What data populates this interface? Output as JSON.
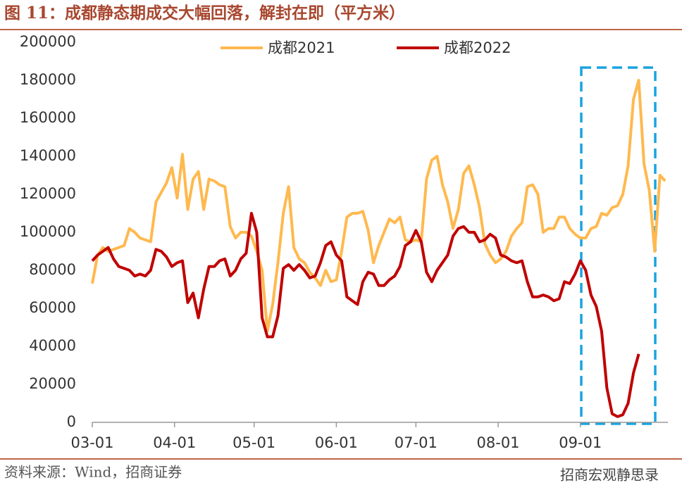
{
  "chart_data": {
    "type": "line",
    "title": "图 11：成都静态期成交大幅回落，解封在即（平方米）",
    "source": "资料来源：Wind，招商证券",
    "watermark": "招商宏观静思录",
    "x": [
      "03-01",
      "03-03",
      "03-05",
      "03-07",
      "03-09",
      "03-11",
      "03-13",
      "03-15",
      "03-17",
      "03-19",
      "03-21",
      "03-23",
      "03-25",
      "03-27",
      "03-29",
      "03-31",
      "04-02",
      "04-04",
      "04-06",
      "04-08",
      "04-10",
      "04-12",
      "04-14",
      "04-16",
      "04-18",
      "04-20",
      "04-22",
      "04-24",
      "04-26",
      "04-28",
      "04-30",
      "05-02",
      "05-04",
      "05-06",
      "05-08",
      "05-10",
      "05-12",
      "05-14",
      "05-16",
      "05-18",
      "05-20",
      "05-22",
      "05-24",
      "05-26",
      "05-28",
      "05-30",
      "06-01",
      "06-03",
      "06-05",
      "06-07",
      "06-09",
      "06-11",
      "06-13",
      "06-15",
      "06-17",
      "06-19",
      "06-21",
      "06-23",
      "06-25",
      "06-27",
      "06-29",
      "07-01",
      "07-03",
      "07-05",
      "07-07",
      "07-09",
      "07-11",
      "07-13",
      "07-15",
      "07-17",
      "07-19",
      "07-21",
      "07-23",
      "07-25",
      "07-27",
      "07-29",
      "07-31",
      "08-02",
      "08-04",
      "08-06",
      "08-08",
      "08-10",
      "08-12",
      "08-14",
      "08-16",
      "08-18",
      "08-20",
      "08-22",
      "08-24",
      "08-26",
      "08-28",
      "08-30",
      "09-01",
      "09-03",
      "09-05",
      "09-07",
      "09-09",
      "09-11",
      "09-13",
      "09-15",
      "09-17",
      "09-19",
      "09-21",
      "09-23",
      "09-25",
      "09-27",
      "09-29",
      "10-01",
      "10-03"
    ],
    "series": [
      {
        "name": "成都2021",
        "color": "#FFB94F",
        "values": [
          73000,
          88000,
          92000,
          90000,
          91000,
          92000,
          93000,
          102000,
          100000,
          97000,
          96000,
          95000,
          116000,
          121000,
          126000,
          134000,
          118000,
          141000,
          112000,
          128000,
          132000,
          112000,
          128000,
          127000,
          125000,
          124000,
          103000,
          97000,
          100000,
          100000,
          98000,
          90000,
          80000,
          48000,
          62000,
          84000,
          110000,
          124000,
          92000,
          86000,
          84000,
          79000,
          76000,
          72000,
          80000,
          74000,
          75000,
          90000,
          108000,
          110000,
          110000,
          111000,
          101000,
          84000,
          93000,
          100000,
          107000,
          105000,
          108000,
          96000,
          95000,
          96000,
          95000,
          128000,
          138000,
          140000,
          125000,
          116000,
          102000,
          112000,
          131000,
          135000,
          125000,
          113000,
          94000,
          88000,
          84000,
          86000,
          90000,
          98000,
          102000,
          105000,
          124000,
          125000,
          120000,
          100000,
          102000,
          102000,
          108000,
          108000,
          102000,
          99000,
          97000,
          97000,
          102000,
          103000,
          110000,
          109000,
          113000,
          114000,
          120000,
          135000,
          170000,
          180000,
          136000,
          122000,
          90000,
          130000,
          127000
        ]
      },
      {
        "name": "成都2022",
        "color": "#C00000",
        "values": [
          85000,
          88000,
          90000,
          92000,
          86000,
          82000,
          81000,
          80000,
          77000,
          78000,
          77000,
          80000,
          91000,
          90000,
          87000,
          82000,
          84000,
          85000,
          63000,
          68000,
          55000,
          70000,
          82000,
          82000,
          85000,
          86000,
          77000,
          80000,
          86000,
          89000,
          110000,
          100000,
          55000,
          45000,
          45000,
          56000,
          81000,
          83000,
          80000,
          83000,
          80000,
          76000,
          77000,
          84000,
          93000,
          95000,
          88000,
          85000,
          66000,
          64000,
          62000,
          74000,
          79000,
          78000,
          72000,
          72000,
          75000,
          77000,
          82000,
          93000,
          95000,
          101000,
          95000,
          79000,
          74000,
          80000,
          84000,
          88000,
          98000,
          102000,
          103000,
          100000,
          100000,
          95000,
          96000,
          99000,
          97000,
          88000,
          87000,
          85000,
          84000,
          85000,
          74000,
          66000,
          66000,
          67000,
          66000,
          64000,
          65000,
          74000,
          73000,
          78000,
          85000,
          80000,
          67000,
          61000,
          48000,
          18000,
          4500,
          3000,
          4000,
          10000,
          26000,
          36000,
          null,
          null,
          null,
          null,
          null
        ]
      }
    ],
    "xlim": [
      "03-01",
      "10-04"
    ],
    "xticks": [
      "03-01",
      "04-01",
      "05-01",
      "06-01",
      "07-01",
      "08-01",
      "09-01"
    ],
    "ylim": [
      0,
      200000
    ],
    "yticks": [
      0,
      20000,
      40000,
      60000,
      80000,
      100000,
      120000,
      140000,
      160000,
      180000,
      200000
    ],
    "grid": false,
    "legend": "top"
  }
}
